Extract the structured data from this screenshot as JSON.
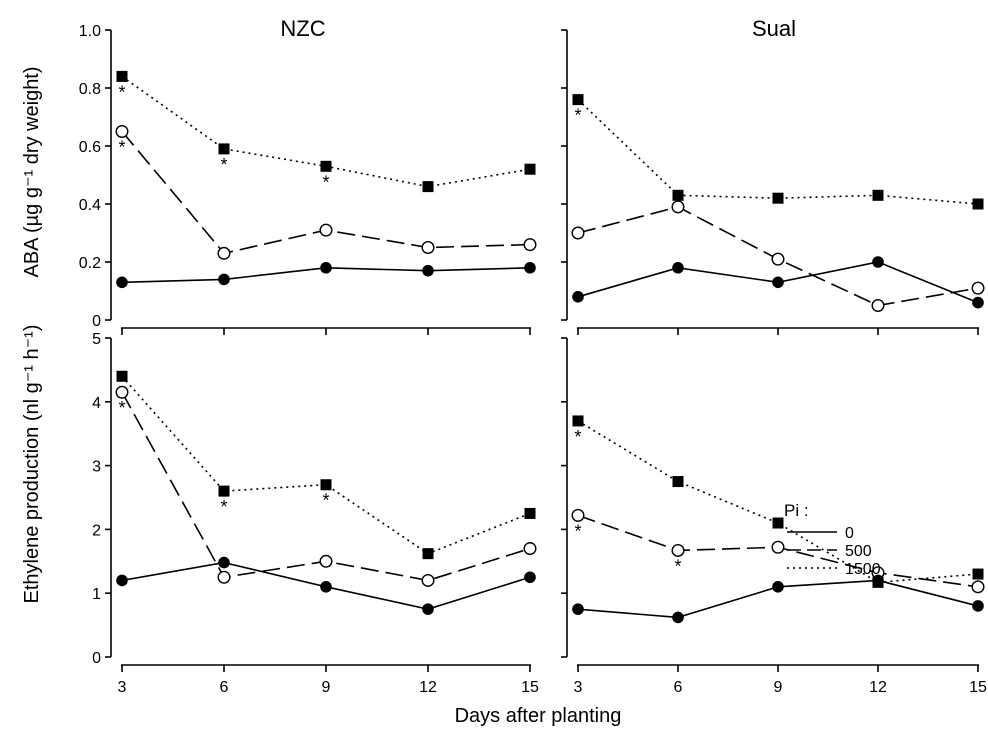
{
  "figure": {
    "xlabel": "Days after planting",
    "ylabel_top": "ABA (µg g⁻¹ dry weight)",
    "ylabel_bottom": "Ethylene production (nl g⁻¹ h⁻¹)",
    "col_titles": [
      "NZC",
      "Sual"
    ],
    "legend": {
      "title": "Pi :",
      "entries": [
        "0",
        "500",
        "1500"
      ]
    }
  },
  "chart_data": [
    {
      "type": "line",
      "panel": "ABA - NZC",
      "title": "NZC",
      "ylabel": "ABA (µg g⁻¹ dry weight)",
      "xlabel": "",
      "x": [
        3,
        6,
        9,
        12,
        15
      ],
      "xlim": [
        3,
        15
      ],
      "ylim": [
        0,
        1.0
      ],
      "yticks": [
        "0",
        "0.2",
        "0.4",
        "0.6",
        "0.8",
        "1.0"
      ],
      "xticks": [],
      "series": [
        {
          "name": "0",
          "values": [
            0.13,
            0.14,
            0.18,
            0.17,
            0.18
          ],
          "style": "solid",
          "marker": "filled-circle",
          "stars": []
        },
        {
          "name": "500",
          "values": [
            0.65,
            0.23,
            0.31,
            0.25,
            0.26
          ],
          "style": "dashed",
          "marker": "open-circle",
          "stars": [
            3
          ]
        },
        {
          "name": "1500",
          "values": [
            0.84,
            0.59,
            0.53,
            0.46,
            0.52
          ],
          "style": "dotted",
          "marker": "filled-square",
          "stars": [
            3,
            6,
            9
          ]
        }
      ]
    },
    {
      "type": "line",
      "panel": "ABA - Sual",
      "title": "Sual",
      "ylabel": "",
      "xlabel": "",
      "x": [
        3,
        6,
        9,
        12,
        15
      ],
      "xlim": [
        3,
        15
      ],
      "ylim": [
        0,
        1.0
      ],
      "yticks": [],
      "xticks": [],
      "series": [
        {
          "name": "0",
          "values": [
            0.08,
            0.18,
            0.13,
            0.2,
            0.06
          ],
          "style": "solid",
          "marker": "filled-circle",
          "stars": []
        },
        {
          "name": "500",
          "values": [
            0.3,
            0.39,
            0.21,
            0.05,
            0.11
          ],
          "style": "dashed",
          "marker": "open-circle",
          "stars": []
        },
        {
          "name": "1500",
          "values": [
            0.76,
            0.43,
            0.42,
            0.43,
            0.4
          ],
          "style": "dotted",
          "marker": "filled-square",
          "stars": [
            3
          ]
        }
      ]
    },
    {
      "type": "line",
      "panel": "Ethylene - NZC",
      "title": "",
      "ylabel": "Ethylene production (nl g⁻¹ h⁻¹)",
      "xlabel": "Days after planting",
      "x": [
        3,
        6,
        9,
        12,
        15
      ],
      "xlim": [
        3,
        15
      ],
      "ylim": [
        0,
        5
      ],
      "yticks": [
        "0",
        "1",
        "2",
        "3",
        "4",
        "5"
      ],
      "xticks": [
        "3",
        "6",
        "9",
        "12",
        "15"
      ],
      "series": [
        {
          "name": "0",
          "values": [
            1.2,
            1.48,
            1.1,
            0.75,
            1.25
          ],
          "style": "solid",
          "marker": "filled-circle",
          "stars": []
        },
        {
          "name": "500",
          "values": [
            4.15,
            1.25,
            1.5,
            1.2,
            1.7
          ],
          "style": "dashed",
          "marker": "open-circle",
          "stars": [
            3
          ]
        },
        {
          "name": "1500",
          "values": [
            4.4,
            2.6,
            2.7,
            1.62,
            2.25
          ],
          "style": "dotted",
          "marker": "filled-square",
          "stars": [
            6,
            9
          ]
        }
      ]
    },
    {
      "type": "line",
      "panel": "Ethylene - Sual",
      "title": "",
      "ylabel": "",
      "xlabel": "Days after planting",
      "x": [
        3,
        6,
        9,
        12,
        15
      ],
      "xlim": [
        3,
        15
      ],
      "ylim": [
        0,
        5
      ],
      "yticks": [],
      "xticks": [
        "3",
        "6",
        "9",
        "12",
        "15"
      ],
      "series": [
        {
          "name": "0",
          "values": [
            0.75,
            0.62,
            1.1,
            1.2,
            0.8
          ],
          "style": "solid",
          "marker": "filled-circle",
          "stars": []
        },
        {
          "name": "500",
          "values": [
            2.22,
            1.67,
            1.72,
            1.32,
            1.1
          ],
          "style": "dashed",
          "marker": "open-circle",
          "stars": [
            3,
            6
          ]
        },
        {
          "name": "1500",
          "values": [
            3.7,
            2.75,
            2.1,
            1.17,
            1.3
          ],
          "style": "dotted",
          "marker": "filled-square",
          "stars": [
            3
          ]
        }
      ]
    }
  ]
}
